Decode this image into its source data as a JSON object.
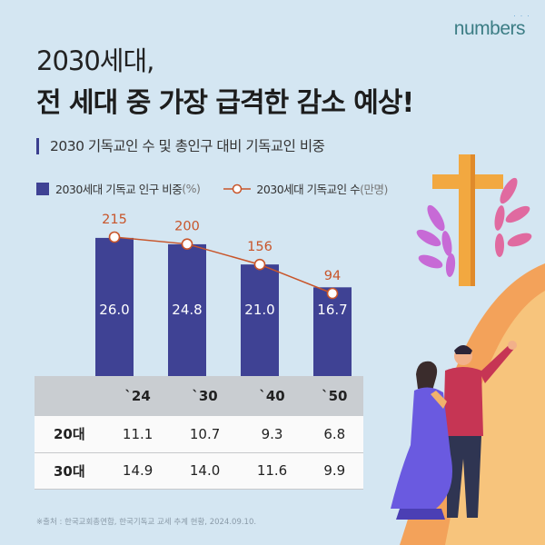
{
  "brand": {
    "name": "numbers",
    "dots": "· · ·"
  },
  "title": {
    "line1": "2030세대,",
    "line2": "전 세대 중 가장 급격한 감소 예상!"
  },
  "subtitle": "2030 기독교인 수 및 총인구 대비 기독교인 비중",
  "legend": {
    "bar_label": "2030세대 기독교 인구 비중",
    "bar_unit": "(%)",
    "line_label": "2030세대 기독교인 수",
    "line_unit": "(만명)"
  },
  "colors": {
    "bar": "#3f4294",
    "line": "#c8552a",
    "table_header": "#c9cdd1"
  },
  "chart_data": {
    "type": "bar",
    "categories": [
      "`24",
      "`30",
      "`40",
      "`50"
    ],
    "series": [
      {
        "name": "2030세대 기독교 인구 비중(%)",
        "type": "bar",
        "values": [
          26.0,
          24.8,
          21.0,
          16.7
        ],
        "labels": [
          "26.0",
          "24.8",
          "21.0",
          "16.7"
        ]
      },
      {
        "name": "2030세대 기독교인 수(만명)",
        "type": "line",
        "values": [
          215,
          200,
          156,
          94
        ],
        "labels": [
          "215",
          "200",
          "156",
          "94"
        ]
      }
    ],
    "table": {
      "rows": [
        {
          "label": "20대",
          "values": [
            "11.1",
            "10.7",
            "9.3",
            "6.8"
          ]
        },
        {
          "label": "30대",
          "values": [
            "14.9",
            "14.0",
            "11.6",
            "9.9"
          ]
        }
      ]
    }
  },
  "source": "※출처 : 한국교회총연합, 한국기독교 교세 추계 현황, 2024.09.10."
}
